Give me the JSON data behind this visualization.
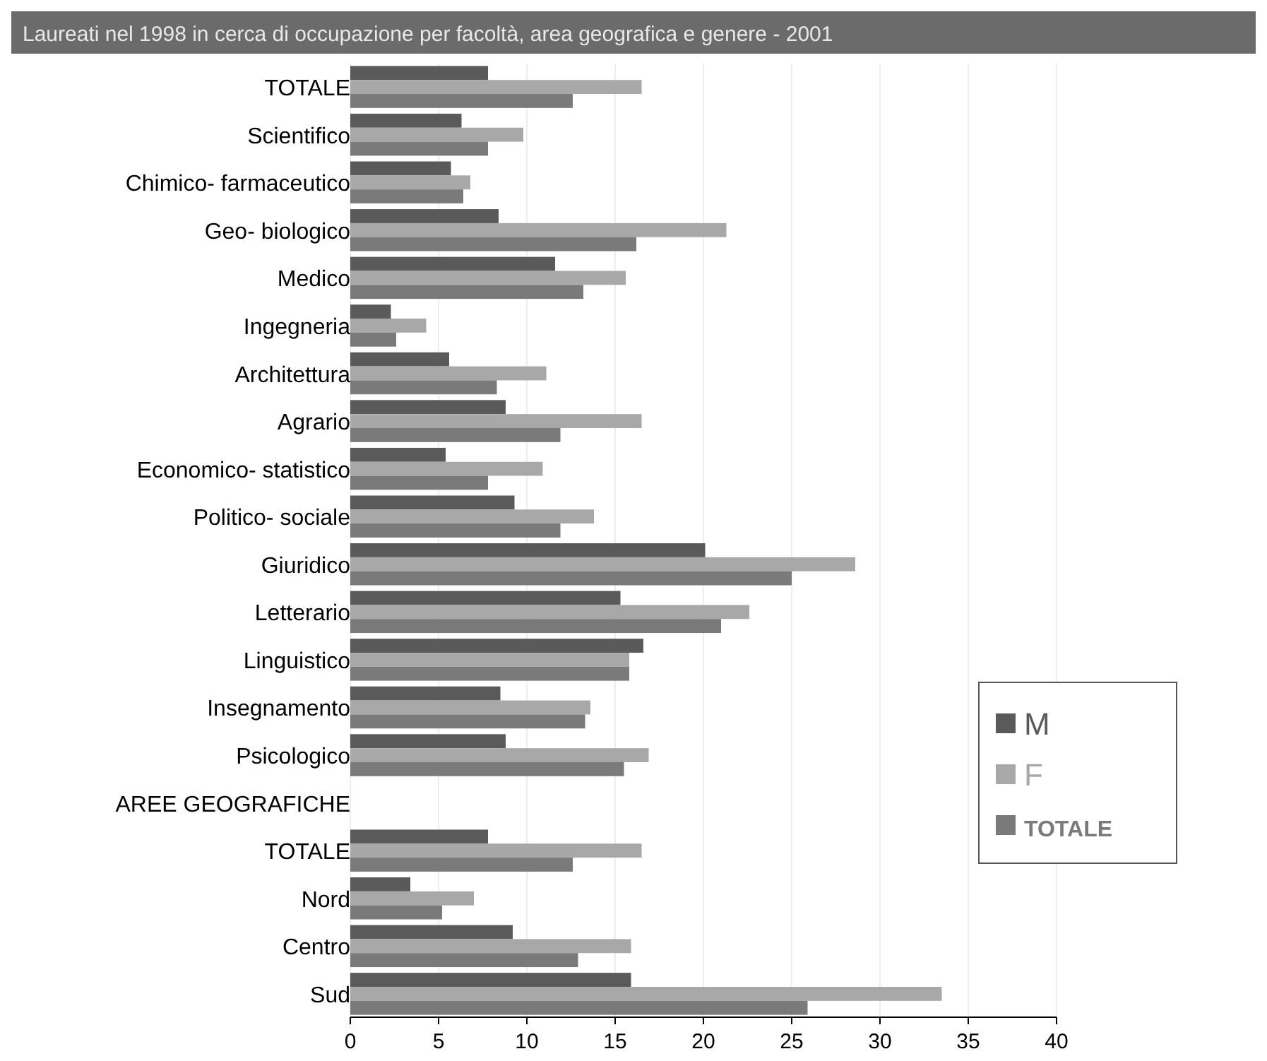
{
  "chart_data": {
    "type": "bar",
    "orientation": "horizontal",
    "title": "Laureati nel 1998 in cerca di occupazione per facoltà, area geografica e genere -  2001",
    "categories": [
      "TOTALE",
      "Scientifico",
      "Chimico- farmaceutico",
      "Geo- biologico",
      "Medico",
      "Ingegneria",
      "Architettura",
      "Agrario",
      "Economico- statistico",
      "Politico- sociale",
      "Giuridico",
      "Letterario",
      "Linguistico",
      "Insegnamento",
      "Psicologico",
      "AREE GEOGRAFICHE",
      "TOTALE",
      "Nord",
      "Centro",
      "Sud"
    ],
    "series": [
      {
        "name": "M",
        "color": "#5a5a5a",
        "values": [
          7.8,
          6.3,
          5.7,
          8.4,
          11.6,
          2.3,
          5.6,
          8.8,
          5.4,
          9.3,
          20.1,
          15.3,
          16.6,
          8.5,
          8.8,
          null,
          7.8,
          3.4,
          9.2,
          15.9
        ]
      },
      {
        "name": "F",
        "color": "#a8a8a8",
        "values": [
          16.5,
          9.8,
          6.8,
          21.3,
          15.6,
          4.3,
          11.1,
          16.5,
          10.9,
          13.8,
          28.6,
          22.6,
          15.8,
          13.6,
          16.9,
          null,
          16.5,
          7.0,
          15.9,
          33.5
        ]
      },
      {
        "name": "TOTALE",
        "color": "#7a7a7a",
        "values": [
          12.6,
          7.8,
          6.4,
          16.2,
          13.2,
          2.6,
          8.3,
          11.9,
          7.8,
          11.9,
          25.0,
          21.0,
          15.8,
          13.3,
          15.5,
          null,
          12.6,
          5.2,
          12.9,
          25.9
        ]
      }
    ],
    "xlim": [
      0,
      40
    ],
    "xticks": [
      0,
      5,
      10,
      15,
      20,
      25,
      30,
      35,
      40
    ],
    "grid": "x",
    "legend": "bottom right"
  }
}
